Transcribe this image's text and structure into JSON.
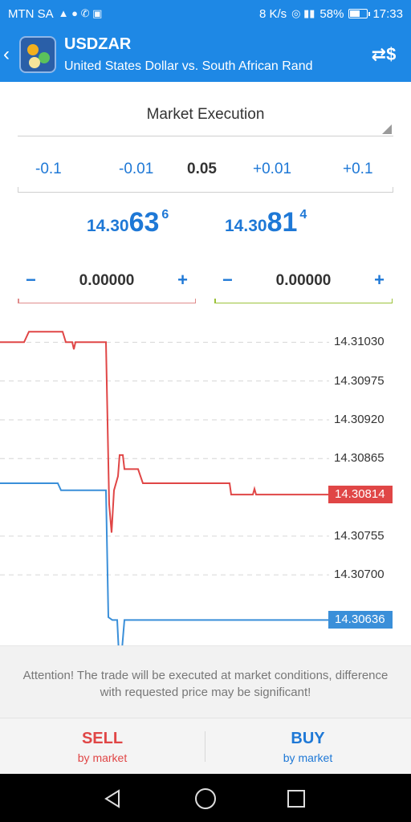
{
  "status_bar": {
    "carrier": "MTN SA",
    "speed": "8 K/s",
    "battery": "58%",
    "battery_level": 0.58,
    "time": "17:33"
  },
  "header": {
    "symbol": "USDZAR",
    "description": "United States Dollar vs. South African Rand",
    "back_icon": "chevron-left-icon",
    "exchange_icon": "currency-exchange-icon"
  },
  "execution": {
    "mode": "Market Execution"
  },
  "volume": {
    "steps": [
      "-0.1",
      "-0.01",
      "0.05",
      "+0.01",
      "+0.1"
    ],
    "current": "0.05"
  },
  "prices": {
    "bid": {
      "prefix": "14.30",
      "big": "63",
      "sup": "6"
    },
    "ask": {
      "prefix": "14.30",
      "big": "81",
      "sup": "4"
    }
  },
  "stop_loss": {
    "value": "0.00000",
    "minus": "−",
    "plus": "+"
  },
  "take_profit": {
    "value": "0.00000",
    "minus": "−",
    "plus": "+"
  },
  "colors": {
    "accent": "#1e88e5",
    "sell": "#e04646",
    "buy": "#1e78d6",
    "sl_line": "#e08c8c",
    "tp_line": "#9cc23a"
  },
  "chart_data": {
    "type": "line",
    "y_ticks": [
      "14.31030",
      "14.30975",
      "14.30920",
      "14.30865",
      "14.30755",
      "14.30700"
    ],
    "ylim": [
      14.306,
      14.3106
    ],
    "grid": true,
    "series": [
      {
        "role": "ask",
        "color": "#e04646",
        "points": [
          [
            0,
            14.3103
          ],
          [
            30,
            14.3103
          ],
          [
            36,
            14.31045
          ],
          [
            78,
            14.31045
          ],
          [
            82,
            14.3103
          ],
          [
            90,
            14.3103
          ],
          [
            92,
            14.3102
          ],
          [
            94,
            14.3103
          ],
          [
            132,
            14.3103
          ],
          [
            136,
            14.308
          ],
          [
            139,
            14.3076
          ],
          [
            142,
            14.3082
          ],
          [
            147,
            14.3084
          ],
          [
            149,
            14.3087
          ],
          [
            153,
            14.3087
          ],
          [
            155,
            14.3085
          ],
          [
            172,
            14.3085
          ],
          [
            178,
            14.3083
          ],
          [
            286,
            14.3083
          ],
          [
            288,
            14.30814
          ],
          [
            315,
            14.30814
          ],
          [
            317,
            14.30822
          ],
          [
            319,
            14.30814
          ],
          [
            410,
            14.30814
          ]
        ],
        "last": "14.30814"
      },
      {
        "role": "bid",
        "color": "#3a8fd9",
        "points": [
          [
            0,
            14.3083
          ],
          [
            72,
            14.3083
          ],
          [
            76,
            14.3082
          ],
          [
            132,
            14.3082
          ],
          [
            135,
            14.3064
          ],
          [
            140,
            14.30636
          ],
          [
            146,
            14.30636
          ],
          [
            148,
            14.3059
          ],
          [
            152,
            14.30595
          ],
          [
            155,
            14.30636
          ],
          [
            410,
            14.30636
          ]
        ],
        "last": "14.30636"
      }
    ]
  },
  "attention": {
    "text": "Attention! The trade will be executed at market conditions, difference with requested price may be significant!"
  },
  "actions": {
    "sell_label": "SELL",
    "sell_sub": "by market",
    "buy_label": "BUY",
    "buy_sub": "by market"
  },
  "nav": {
    "back_icon": "nav-back-icon",
    "home_icon": "nav-home-icon",
    "recent_icon": "nav-recent-icon"
  }
}
